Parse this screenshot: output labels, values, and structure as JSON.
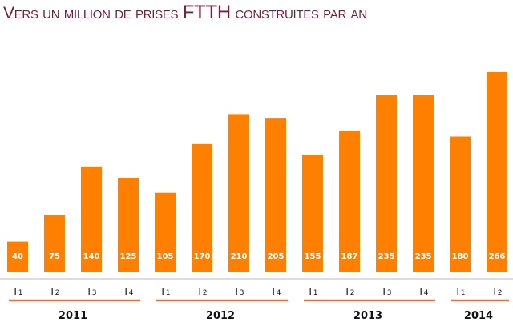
{
  "chart_data": {
    "type": "bar",
    "title_parts": [
      "Vers un million de prises ",
      "FTTH",
      " construites par an"
    ],
    "categories": [
      "T1",
      "T2",
      "T3",
      "T4",
      "T1",
      "T2",
      "T3",
      "T4",
      "T1",
      "T2",
      "T3",
      "T4",
      "T1",
      "T2"
    ],
    "quarter_labels": [
      {
        "letter": "T",
        "num": "1"
      },
      {
        "letter": "T",
        "num": "2"
      },
      {
        "letter": "T",
        "num": "3"
      },
      {
        "letter": "T",
        "num": "4"
      },
      {
        "letter": "T",
        "num": "1"
      },
      {
        "letter": "T",
        "num": "2"
      },
      {
        "letter": "T",
        "num": "3"
      },
      {
        "letter": "T",
        "num": "4"
      },
      {
        "letter": "T",
        "num": "1"
      },
      {
        "letter": "T",
        "num": "2"
      },
      {
        "letter": "T",
        "num": "3"
      },
      {
        "letter": "T",
        "num": "4"
      },
      {
        "letter": "T",
        "num": "1"
      },
      {
        "letter": "T",
        "num": "2"
      }
    ],
    "values": [
      40,
      75,
      140,
      125,
      105,
      170,
      210,
      205,
      155,
      187,
      235,
      235,
      180,
      266
    ],
    "groups": [
      {
        "label": "2011",
        "start": 0,
        "end": 3
      },
      {
        "label": "2012",
        "start": 4,
        "end": 7
      },
      {
        "label": "2013",
        "start": 8,
        "end": 11
      },
      {
        "label": "2014",
        "start": 12,
        "end": 13
      }
    ],
    "ylim": [
      0,
      266
    ],
    "xlabel": "",
    "ylabel": "",
    "grid": false,
    "colors": {
      "bar": "#ff7f00",
      "title": "#7a1c3c",
      "group_line": "#f26a3c",
      "axis": "#bbbbbb"
    }
  }
}
